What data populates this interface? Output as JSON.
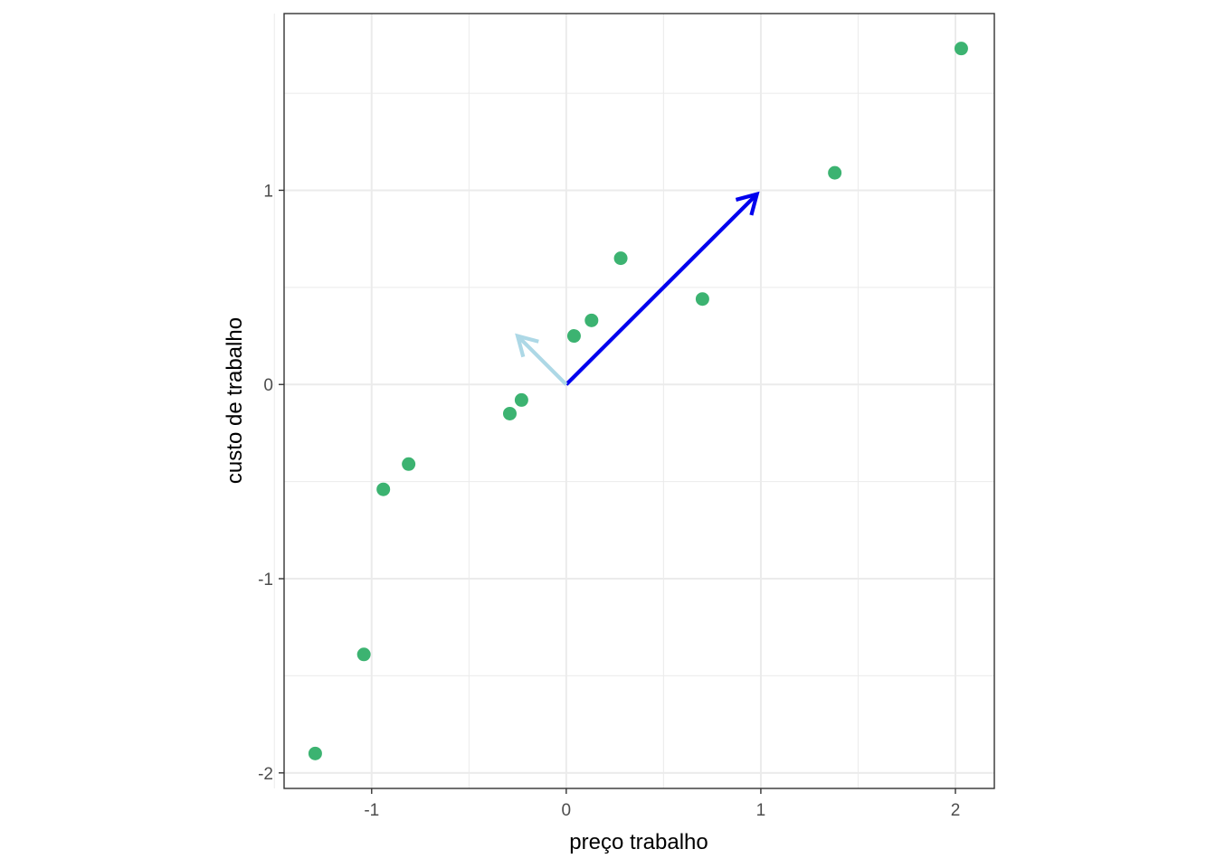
{
  "chart_data": {
    "type": "scatter",
    "title": "",
    "xlabel": "preço trabalho",
    "ylabel": "custo de trabalho",
    "xlim": [
      -1.45,
      2.2
    ],
    "ylim": [
      -2.08,
      1.91
    ],
    "x_ticks": [
      -1,
      0,
      1,
      2
    ],
    "x_tick_labels": [
      "-1",
      "0",
      "1",
      "2"
    ],
    "y_ticks": [
      -2,
      -1,
      0,
      1
    ],
    "y_tick_labels": [
      "-2",
      "-1",
      "0",
      "1"
    ],
    "x_minor_ticks": [
      -1.5,
      -0.5,
      0.5,
      1.5
    ],
    "y_minor_ticks": [
      -1.5,
      -0.5,
      0.5,
      1.5
    ],
    "grid": true,
    "legend": "none",
    "points": [
      {
        "x": -1.29,
        "y": -1.9
      },
      {
        "x": -1.04,
        "y": -1.39
      },
      {
        "x": -0.94,
        "y": -0.54
      },
      {
        "x": -0.81,
        "y": -0.41
      },
      {
        "x": -0.29,
        "y": -0.15
      },
      {
        "x": -0.23,
        "y": -0.08
      },
      {
        "x": 0.04,
        "y": 0.25
      },
      {
        "x": 0.13,
        "y": 0.33
      },
      {
        "x": 0.28,
        "y": 0.65
      },
      {
        "x": 0.7,
        "y": 0.44
      },
      {
        "x": 1.38,
        "y": 1.09
      },
      {
        "x": 2.03,
        "y": 1.73
      }
    ],
    "arrows": [
      {
        "x0": 0,
        "y0": 0,
        "x1": 0.98,
        "y1": 0.98,
        "color": "#0000ee"
      },
      {
        "x0": 0,
        "y0": 0,
        "x1": -0.25,
        "y1": 0.25,
        "color": "#add8e6"
      }
    ],
    "colors": {
      "point": "#3cb371",
      "grid": "#ebebeb",
      "panel_border": "#333333",
      "tick_text": "#4d4d4d"
    }
  }
}
